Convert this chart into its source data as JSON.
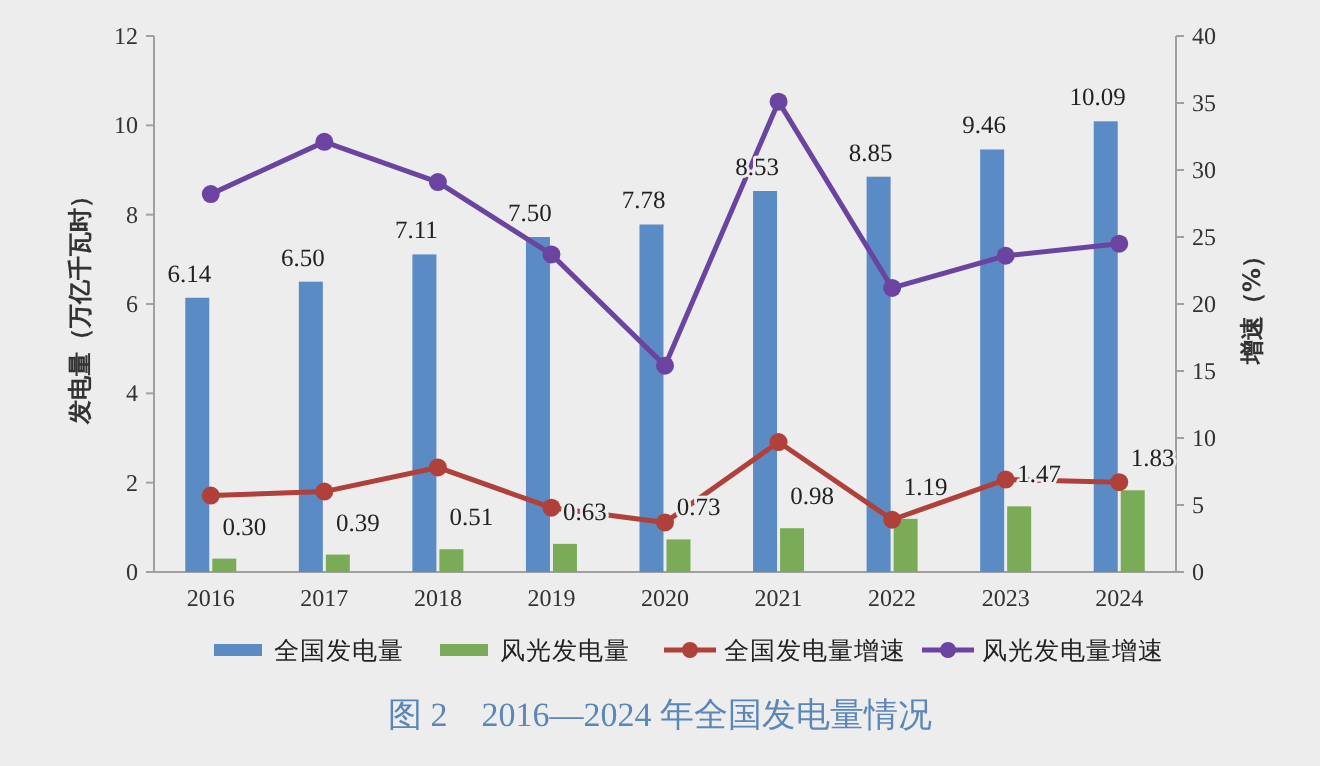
{
  "chart_data": {
    "type": "bar",
    "title": "图 2　2016—2024 年全国发电量情况",
    "ylabel": "发电量（万亿千瓦时）",
    "y2label": "增速（%）",
    "categories": [
      "2016",
      "2017",
      "2018",
      "2019",
      "2020",
      "2021",
      "2022",
      "2023",
      "2024"
    ],
    "series": [
      {
        "name": "全国发电量",
        "color": "#5b8bc4",
        "values": [
          6.14,
          6.5,
          7.11,
          7.5,
          7.78,
          8.53,
          8.85,
          9.46,
          10.09
        ],
        "value_labels": [
          "6.14",
          "6.50",
          "7.11",
          "7.50",
          "7.78",
          "8.53",
          "8.85",
          "9.46",
          "10.09"
        ]
      },
      {
        "name": "风光发电量",
        "color": "#7aab57",
        "values": [
          0.3,
          0.39,
          0.51,
          0.63,
          0.73,
          0.98,
          1.19,
          1.47,
          1.83
        ],
        "value_labels": [
          "0.30",
          "0.39",
          "0.51",
          "0.63",
          "0.73",
          "0.98",
          "1.19",
          "1.47",
          "1.83"
        ]
      },
      {
        "name": "全国发电量增速",
        "type": "line",
        "axis": "y2",
        "color": "#b0403a",
        "values": [
          5.7,
          6.0,
          7.8,
          4.8,
          3.7,
          9.7,
          3.9,
          6.9,
          6.7
        ]
      },
      {
        "name": "风光发电量增速",
        "type": "line",
        "axis": "y2",
        "color": "#6a44a0",
        "values": [
          28.2,
          32.1,
          29.1,
          23.7,
          15.4,
          35.1,
          21.2,
          23.6,
          24.5
        ]
      }
    ],
    "ylim": [
      0,
      12
    ],
    "yticks": [
      0,
      2,
      4,
      6,
      8,
      10,
      12
    ],
    "y2lim": [
      0,
      40
    ],
    "y2ticks": [
      0,
      5,
      10,
      15,
      20,
      25,
      30,
      35,
      40
    ],
    "legend": "bottom",
    "marker": "circle",
    "grid": false
  }
}
